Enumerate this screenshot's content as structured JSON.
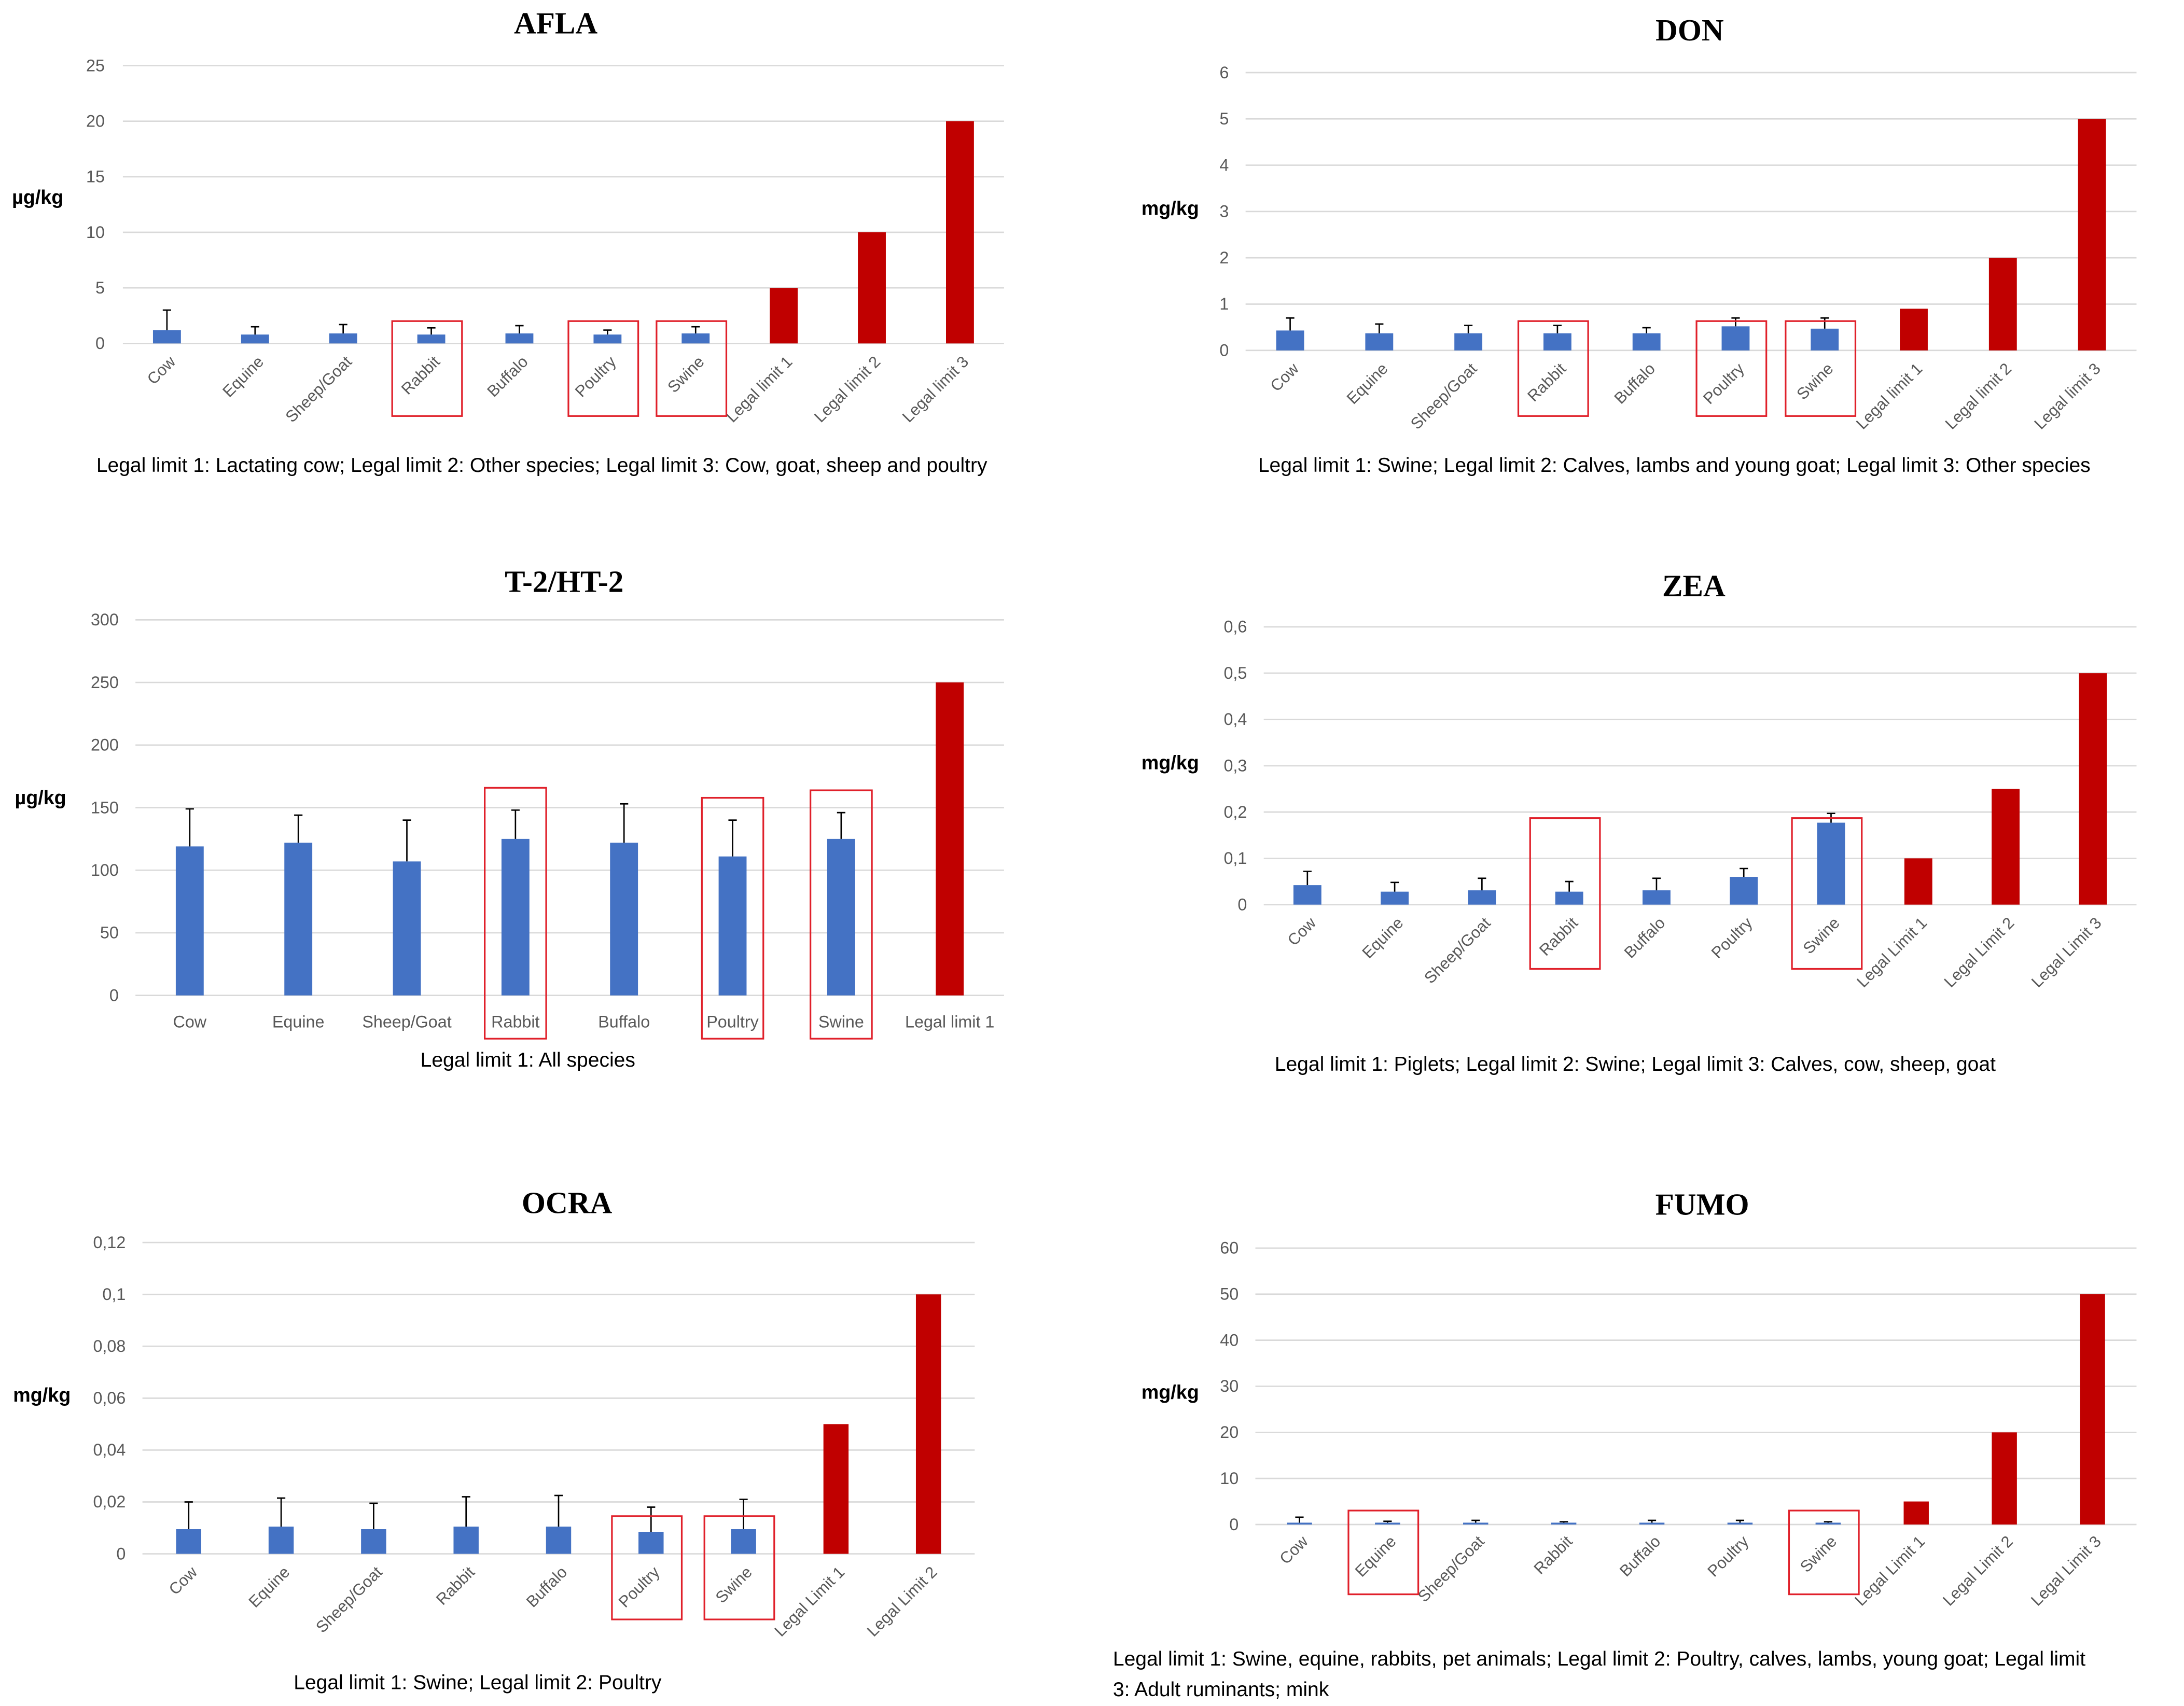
{
  "colors": {
    "bar": "#4472c4",
    "limit_bar": "#c00000",
    "highlight_box": "#e0202a",
    "grid": "#d9d9d9",
    "text": "#000000",
    "tick_text": "#595959"
  },
  "charts": [
    {
      "id": "afla",
      "caption": "Legal limit 1: Lactating cow; Legal limit 2: Other species; Legal limit 3: Cow, goat, sheep and poultry",
      "caption_lines": [
        "Legal limit 1: Lactating cow; Legal limit 2: Other species; Legal limit 3: Cow, goat, sheep and poultry"
      ]
    },
    {
      "id": "don",
      "caption": "Legal limit 1: Swine; Legal limit 2: Calves, lambs and young goat; Legal limit 3: Other species",
      "caption_lines": [
        "Legal limit 1: Swine; Legal limit 2: Calves, lambs and young goat; Legal limit 3: Other species"
      ]
    },
    {
      "id": "t2ht2",
      "caption": "Legal limit 1: All species",
      "caption_lines": [
        "Legal limit 1: All species"
      ]
    },
    {
      "id": "zea",
      "caption": "Legal limit 1: Piglets; Legal limit 2: Swine; Legal limit 3: Calves, cow, sheep, goat",
      "caption_lines": [
        "Legal limit 1: Piglets; Legal limit 2: Swine; Legal limit 3: Calves, cow, sheep, goat"
      ]
    },
    {
      "id": "ocra",
      "caption": "Legal limit 1: Swine; Legal limit 2: Poultry",
      "caption_lines": [
        "Legal limit 1: Swine; Legal limit 2: Poultry"
      ]
    },
    {
      "id": "fumo",
      "caption": "Legal limit 1: Swine, equine, rabbits, pet animals; Legal limit 2: Poultry, calves, lambs, young goat; Legal limit 3: Adult ruminants; mink",
      "caption_lines": [
        "Legal limit 1: Swine, equine, rabbits, pet animals; Legal limit 2: Poultry, calves, lambs, young goat; Legal limit",
        "3: Adult ruminants; mink"
      ]
    }
  ],
  "chart_data": [
    {
      "type": "bar",
      "title": "AFLA",
      "ylabel": "µg/kg",
      "ylim": [
        0,
        25
      ],
      "yticks": [
        "0",
        "5",
        "10",
        "15",
        "20",
        "25"
      ],
      "ytick_values": [
        0,
        5,
        10,
        15,
        20,
        25
      ],
      "categories": [
        "Cow",
        "Equine",
        "Sheep/Goat",
        "Rabbit",
        "Buffalo",
        "Poultry",
        "Swine",
        "Legal limit 1",
        "Legal limit 2",
        "Legal limit 3"
      ],
      "values": [
        1.2,
        0.8,
        0.9,
        0.8,
        0.9,
        0.8,
        0.9,
        5,
        10,
        20
      ],
      "errors": [
        1.8,
        0.7,
        0.8,
        0.6,
        0.7,
        0.4,
        0.6,
        null,
        null,
        null
      ],
      "is_legal_limit": [
        false,
        false,
        false,
        false,
        false,
        false,
        false,
        true,
        true,
        true
      ],
      "highlighted": [
        "Rabbit",
        "Poultry",
        "Swine"
      ],
      "label_rotation": -45,
      "grid": true
    },
    {
      "type": "bar",
      "title": "DON",
      "ylabel": "mg/kg",
      "ylim": [
        0,
        6
      ],
      "yticks": [
        "0",
        "1",
        "2",
        "3",
        "4",
        "5",
        "6"
      ],
      "ytick_values": [
        0,
        1,
        2,
        3,
        4,
        5,
        6
      ],
      "categories": [
        "Cow",
        "Equine",
        "Sheep/Goat",
        "Rabbit",
        "Buffalo",
        "Poultry",
        "Swine",
        "Legal limit 1",
        "Legal limit 2",
        "Legal limit 3"
      ],
      "values": [
        0.43,
        0.37,
        0.37,
        0.37,
        0.37,
        0.52,
        0.47,
        0.9,
        2,
        5
      ],
      "errors": [
        0.27,
        0.2,
        0.17,
        0.17,
        0.12,
        0.18,
        0.23,
        null,
        null,
        null
      ],
      "is_legal_limit": [
        false,
        false,
        false,
        false,
        false,
        false,
        false,
        true,
        true,
        true
      ],
      "highlighted": [
        "Rabbit",
        "Poultry",
        "Swine"
      ],
      "label_rotation": -45,
      "grid": true
    },
    {
      "type": "bar",
      "title": "T-2/HT-2",
      "ylabel": "µg/kg",
      "ylim": [
        0,
        300
      ],
      "yticks": [
        "0",
        "50",
        "100",
        "150",
        "200",
        "250",
        "300"
      ],
      "ytick_values": [
        0,
        50,
        100,
        150,
        200,
        250,
        300
      ],
      "categories": [
        "Cow",
        "Equine",
        "Sheep/Goat",
        "Rabbit",
        "Buffalo",
        "Poultry",
        "Swine",
        "Legal limit 1"
      ],
      "values": [
        119,
        122,
        107,
        125,
        122,
        111,
        125,
        250
      ],
      "errors": [
        30,
        22,
        33,
        23,
        31,
        29,
        21,
        null
      ],
      "is_legal_limit": [
        false,
        false,
        false,
        false,
        false,
        false,
        false,
        true
      ],
      "highlighted": [
        "Rabbit",
        "Poultry",
        "Swine"
      ],
      "label_rotation": 0,
      "grid": true
    },
    {
      "type": "bar",
      "title": "ZEA",
      "ylabel": "mg/kg",
      "ylim": [
        0,
        0.6
      ],
      "yticks": [
        "0",
        "0,1",
        "0,2",
        "0,3",
        "0,4",
        "0,5",
        "0,6"
      ],
      "ytick_values": [
        0,
        0.1,
        0.2,
        0.3,
        0.4,
        0.5,
        0.6
      ],
      "categories": [
        "Cow",
        "Equine",
        "Sheep/Goat",
        "Rabbit",
        "Buffalo",
        "Poultry",
        "Swine",
        "Legal Limit 1",
        "Legal Limit 2",
        "Legal Limit 3"
      ],
      "values": [
        0.042,
        0.028,
        0.031,
        0.028,
        0.031,
        0.06,
        0.177,
        0.1,
        0.25,
        0.5
      ],
      "errors": [
        0.03,
        0.02,
        0.026,
        0.022,
        0.026,
        0.018,
        0.02,
        null,
        null,
        null
      ],
      "is_legal_limit": [
        false,
        false,
        false,
        false,
        false,
        false,
        false,
        true,
        true,
        true
      ],
      "highlighted": [
        "Rabbit",
        "Swine"
      ],
      "label_rotation": -45,
      "grid": true
    },
    {
      "type": "bar",
      "title": "OCRA",
      "ylabel": "mg/kg",
      "ylim": [
        0,
        0.12
      ],
      "yticks": [
        "0",
        "0,02",
        "0,04",
        "0,06",
        "0,08",
        "0,1",
        "0,12"
      ],
      "ytick_values": [
        0,
        0.02,
        0.04,
        0.06,
        0.08,
        0.1,
        0.12
      ],
      "categories": [
        "Cow",
        "Equine",
        "Sheep/Goat",
        "Rabbit",
        "Buffalo",
        "Poultry",
        "Swine",
        "Legal Limit 1",
        "Legal Limit 2"
      ],
      "values": [
        0.0095,
        0.0105,
        0.0095,
        0.0105,
        0.0105,
        0.0085,
        0.0095,
        0.05,
        0.1
      ],
      "errors": [
        0.0105,
        0.011,
        0.01,
        0.0115,
        0.012,
        0.0095,
        0.0115,
        null,
        null
      ],
      "is_legal_limit": [
        false,
        false,
        false,
        false,
        false,
        false,
        false,
        true,
        true
      ],
      "highlighted": [
        "Poultry",
        "Swine"
      ],
      "label_rotation": -45,
      "grid": true
    },
    {
      "type": "bar",
      "title": "FUMO",
      "ylabel": "mg/kg",
      "ylim": [
        0,
        60
      ],
      "yticks": [
        "0",
        "10",
        "20",
        "30",
        "40",
        "50",
        "60"
      ],
      "ytick_values": [
        0,
        10,
        20,
        30,
        40,
        50,
        60
      ],
      "categories": [
        "Cow",
        "Equine",
        "Sheep/Goat",
        "Rabbit",
        "Buffalo",
        "Poultry",
        "Swine",
        "Legal Limit 1",
        "Legal Limit 2",
        "Legal Limit 3"
      ],
      "values": [
        0.4,
        0.4,
        0.4,
        0.4,
        0.4,
        0.4,
        0.4,
        5,
        20,
        50
      ],
      "errors": [
        1.2,
        0.3,
        0.5,
        0.2,
        0.5,
        0.5,
        0.2,
        null,
        null,
        null
      ],
      "is_legal_limit": [
        false,
        false,
        false,
        false,
        false,
        false,
        false,
        true,
        true,
        true
      ],
      "highlighted": [
        "Equine",
        "Swine"
      ],
      "label_rotation": -45,
      "grid": true
    }
  ]
}
